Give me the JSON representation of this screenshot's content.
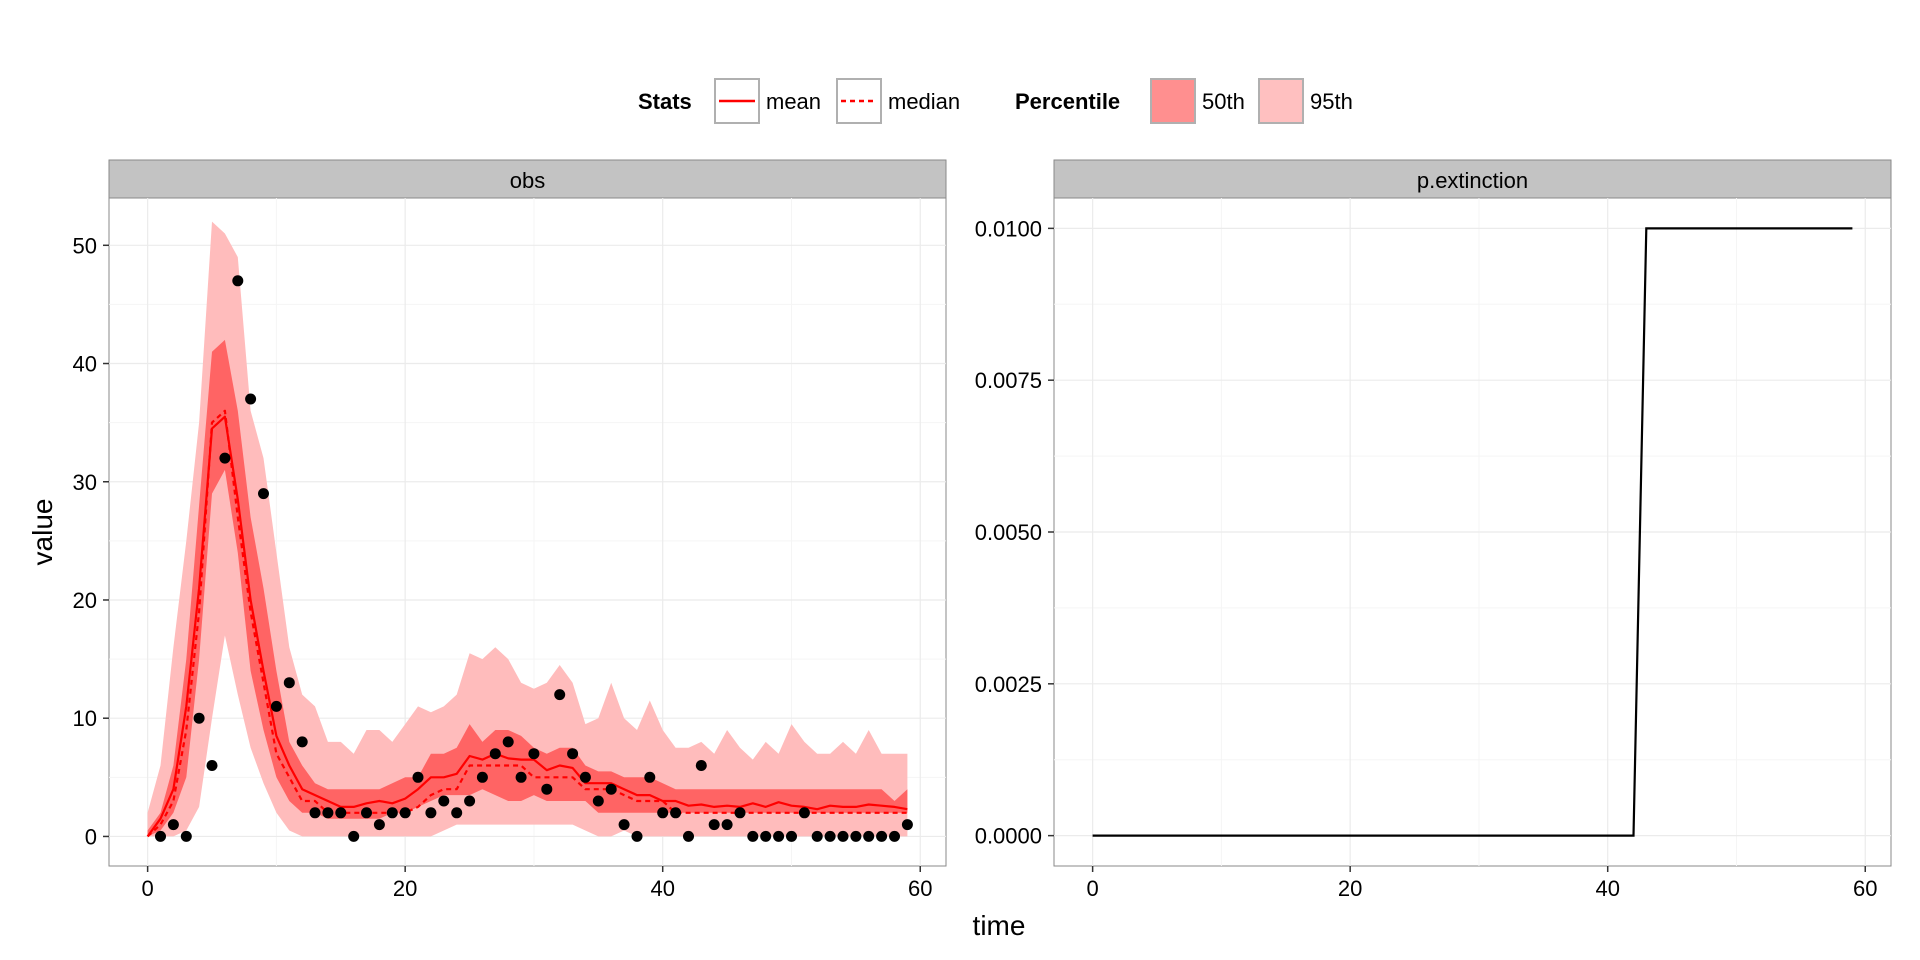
{
  "legend": {
    "stats_title": "Stats",
    "mean_label": "mean",
    "median_label": "median",
    "percentile_title": "Percentile",
    "p50_label": "50th",
    "p95_label": "95th"
  },
  "colors": {
    "line": "#ff0000",
    "band50": "#ff6464",
    "band95": "#ffbcbc",
    "panel_bg": "#ffffff",
    "grid": "#ebebeb",
    "strip": "#c3c3c3",
    "points": "#000000"
  },
  "axes": {
    "xlabel": "time",
    "ylabel": "value"
  },
  "chart_data": [
    {
      "type": "line",
      "panel": "obs",
      "x": [
        0,
        1,
        2,
        3,
        4,
        5,
        6,
        7,
        8,
        9,
        10,
        11,
        12,
        13,
        14,
        15,
        16,
        17,
        18,
        19,
        20,
        21,
        22,
        23,
        24,
        25,
        26,
        27,
        28,
        29,
        30,
        31,
        32,
        33,
        34,
        35,
        36,
        37,
        38,
        39,
        40,
        41,
        42,
        43,
        44,
        45,
        46,
        47,
        48,
        49,
        50,
        51,
        52,
        53,
        54,
        55,
        56,
        57,
        58,
        59
      ],
      "xlim": [
        -3,
        62
      ],
      "ylim": [
        -2.5,
        54
      ],
      "xticks": [
        0,
        20,
        40,
        60
      ],
      "yticks": [
        0,
        10,
        20,
        30,
        40,
        50
      ],
      "grid": true,
      "series": [
        {
          "name": "95th",
          "kind": "band",
          "lower": [
            0,
            0,
            0,
            0.5,
            2.5,
            10,
            17,
            12,
            7.5,
            4.5,
            2,
            0.5,
            0,
            0,
            0,
            0,
            0,
            0,
            0,
            0,
            0,
            0,
            0,
            0.5,
            1,
            1,
            1,
            1,
            1,
            1,
            1,
            1,
            1,
            1,
            0.5,
            0,
            0,
            0.5,
            0,
            0,
            0,
            0,
            0,
            0,
            0,
            0,
            0,
            0,
            0,
            0,
            0,
            0,
            0,
            0,
            0,
            0,
            0,
            0,
            0,
            0
          ],
          "upper": [
            2,
            6,
            16,
            25,
            35,
            52,
            51,
            49,
            36,
            32,
            24,
            16,
            12,
            11,
            8,
            8,
            7,
            9,
            9,
            8,
            9.5,
            11,
            10.5,
            11,
            12,
            15.5,
            15,
            16,
            15,
            13,
            12.5,
            13,
            14.5,
            13,
            9.5,
            10,
            13,
            10,
            9,
            11.5,
            9,
            7.5,
            7.5,
            8,
            7,
            9,
            7.5,
            6.5,
            8,
            7,
            9.5,
            8,
            7,
            7,
            8,
            7,
            9,
            7,
            7,
            7
          ]
        },
        {
          "name": "50th",
          "kind": "band",
          "lower": [
            0,
            0.5,
            2,
            5,
            15,
            29,
            31,
            24,
            14,
            9,
            5,
            3,
            2,
            2,
            1.5,
            1.5,
            1.5,
            1.5,
            1.5,
            2,
            2,
            2.5,
            3,
            3.5,
            3.5,
            3.5,
            4,
            3.5,
            3,
            3,
            3.5,
            3,
            3,
            3,
            3,
            2,
            2,
            2,
            2,
            2,
            2,
            2,
            2,
            2,
            2,
            2,
            2,
            2,
            2,
            2,
            2,
            2,
            2,
            2,
            2,
            2,
            2,
            2,
            2,
            2
          ],
          "upper": [
            0.5,
            2,
            6,
            15,
            28,
            41,
            42,
            36,
            27,
            21,
            14,
            8,
            6,
            4.5,
            4,
            4,
            4,
            4,
            4,
            4.5,
            5,
            5,
            7,
            7,
            7.5,
            9.5,
            8,
            9,
            9,
            8.5,
            7.5,
            7,
            7.5,
            7.5,
            6,
            5.5,
            5.5,
            5,
            5,
            5,
            4.5,
            4,
            4,
            4,
            4,
            4,
            4,
            4,
            4,
            4,
            4,
            4,
            4,
            4,
            4,
            4,
            4,
            4,
            3,
            4
          ]
        },
        {
          "name": "mean",
          "kind": "line",
          "style": "solid",
          "values": [
            0,
            1.5,
            4,
            11,
            21,
            34.5,
            35.5,
            28.5,
            20,
            14,
            8.5,
            6,
            4,
            3.5,
            3,
            2.5,
            2.5,
            2.8,
            3,
            2.8,
            3.2,
            4,
            5,
            5,
            5.3,
            6.8,
            6.5,
            7,
            6.6,
            6.5,
            6.5,
            5.6,
            6,
            5.8,
            4.5,
            4.5,
            4.5,
            4,
            3.5,
            3.5,
            3,
            3,
            2.6,
            2.7,
            2.5,
            2.6,
            2.5,
            2.8,
            2.5,
            2.9,
            2.6,
            2.5,
            2.3,
            2.6,
            2.5,
            2.5,
            2.7,
            2.6,
            2.5,
            2.3
          ]
        },
        {
          "name": "median",
          "kind": "line",
          "style": "dashed",
          "values": [
            0,
            1,
            3,
            9,
            19,
            35,
            36,
            27,
            19,
            13,
            7,
            5,
            3,
            3,
            2,
            2,
            2,
            2,
            2,
            2,
            2,
            2.5,
            3.5,
            4,
            4,
            6,
            6,
            6,
            6,
            6,
            5,
            5,
            5,
            5,
            4,
            4,
            4,
            3.5,
            3,
            3,
            3,
            2,
            2,
            2,
            2,
            2,
            2,
            2,
            2,
            2,
            2,
            2,
            2,
            2,
            2,
            2,
            2,
            2,
            2,
            2
          ]
        },
        {
          "name": "observed",
          "kind": "points",
          "x": [
            1,
            2,
            3,
            4,
            5,
            6,
            7,
            8,
            9,
            10,
            11,
            12,
            13,
            14,
            15,
            16,
            17,
            18,
            19,
            20,
            21,
            22,
            23,
            24,
            25,
            26,
            27,
            28,
            29,
            30,
            31,
            32,
            33,
            34,
            35,
            36,
            37,
            38,
            39,
            40,
            41,
            42,
            43,
            44,
            45,
            46,
            47,
            48,
            49,
            50,
            51,
            52,
            53,
            54,
            55,
            56,
            57,
            58,
            59
          ],
          "values": [
            0,
            1,
            0,
            10,
            6,
            32,
            47,
            37,
            29,
            11,
            13,
            8,
            2,
            2,
            2,
            0,
            2,
            1,
            2,
            2,
            5,
            2,
            3,
            2,
            3,
            5,
            7,
            8,
            5,
            7,
            4,
            12,
            7,
            5,
            3,
            4,
            1,
            0,
            5,
            2,
            2,
            0,
            6,
            1,
            1,
            2,
            0,
            0,
            0,
            0,
            2,
            0,
            0,
            0,
            0,
            0,
            0,
            0,
            1
          ]
        }
      ]
    },
    {
      "type": "line",
      "panel": "p.extinction",
      "x": [
        0,
        42,
        43,
        59
      ],
      "values": [
        0,
        0,
        0.01,
        0.01
      ],
      "xlim": [
        -3,
        62
      ],
      "ylim": [
        -0.0005,
        0.0105
      ],
      "xticks": [
        0,
        20,
        40,
        60
      ],
      "yticks": [
        0.0,
        0.0025,
        0.005,
        0.0075,
        0.01
      ],
      "ytick_labels": [
        "0.0000",
        "0.0025",
        "0.0050",
        "0.0075",
        "0.0100"
      ],
      "grid": true,
      "series": [
        {
          "kind": "line",
          "style": "solid",
          "color": "#000000"
        }
      ]
    }
  ]
}
